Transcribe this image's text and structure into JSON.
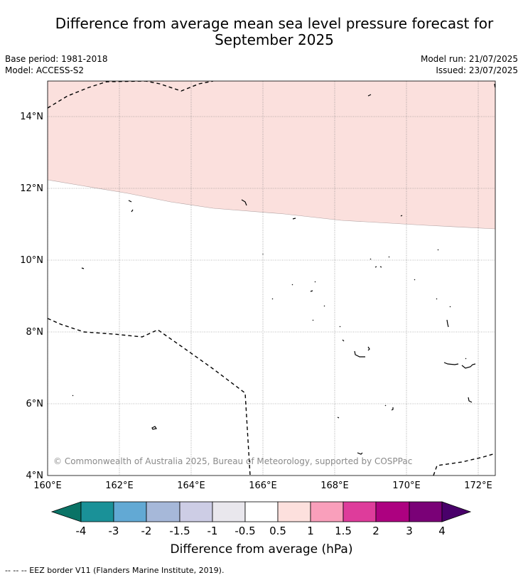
{
  "title": {
    "line1": "Difference from average mean sea level pressure forecast for",
    "line2": "September 2025"
  },
  "meta": {
    "base_period": "Base period: 1981-2018",
    "model": "Model: ACCESS-S2",
    "model_run": "Model run: 21/07/2025",
    "issued": "Issued: 23/07/2025"
  },
  "map": {
    "lat_labels": [
      "14°N",
      "12°N",
      "10°N",
      "8°N",
      "6°N",
      "4°N"
    ],
    "lon_labels": [
      "160°E",
      "162°E",
      "164°E",
      "166°E",
      "168°E",
      "170°E",
      "172°E"
    ],
    "copyright": "© Commonwealth of Australia 2025, Bureau of Meteorology, supported by COSPPac",
    "anomaly_fill_color": "#fbe0dd",
    "anomaly_category": "0.5 to 1 hPa"
  },
  "colorbar": {
    "title": "Difference from average (hPa)",
    "tick_labels": [
      "-4",
      "-3",
      "-2",
      "-1.5",
      "-1",
      "-0.5",
      "0.5",
      "1",
      "1.5",
      "2",
      "3",
      "4"
    ],
    "colors": [
      "#0a7366",
      "#1a9198",
      "#62a9d4",
      "#a6b8d9",
      "#cdcde5",
      "#e9e7ed",
      "#ffffff",
      "#fde0dd",
      "#f99fbb",
      "#de3c9b",
      "#ad0180",
      "#7a0177",
      "#49006a"
    ]
  },
  "footer": {
    "legend_text": "--  --  -- EEZ border V11 (Flanders Marine Institute, 2019)."
  }
}
